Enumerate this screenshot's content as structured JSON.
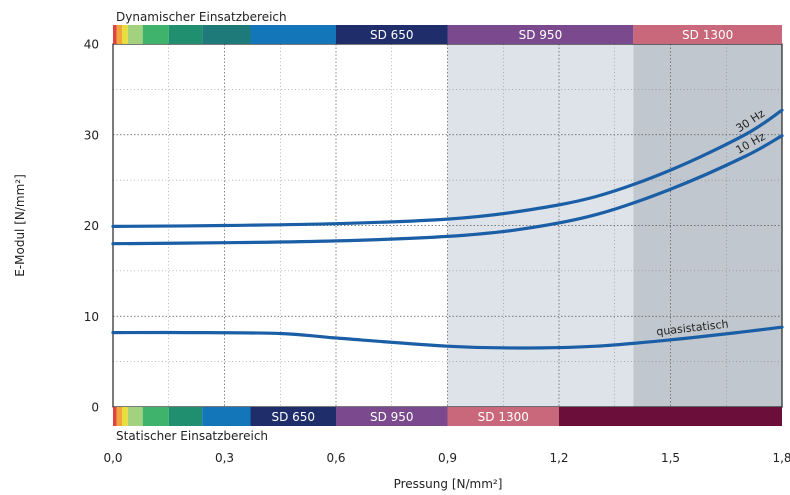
{
  "chart_data": {
    "type": "line",
    "xlabel": "Pressung [N/mm²]",
    "ylabel": "E-Modul [N/mm²]",
    "xlim": [
      0,
      1.8
    ],
    "ylim": [
      0,
      40
    ],
    "x_ticks": [
      "0,0",
      "0,3",
      "0,6",
      "0,9",
      "1,2",
      "1,5",
      "1,8"
    ],
    "y_ticks": [
      "0",
      "10",
      "20",
      "30",
      "40"
    ],
    "grid": true,
    "series": [
      {
        "name": "30 Hz",
        "color": "#1a5ea6",
        "points": [
          [
            0,
            19.9
          ],
          [
            0.3,
            20.0
          ],
          [
            0.6,
            20.2
          ],
          [
            0.9,
            20.7
          ],
          [
            1.1,
            21.6
          ],
          [
            1.3,
            23.2
          ],
          [
            1.5,
            26.1
          ],
          [
            1.7,
            30.0
          ],
          [
            1.8,
            32.7
          ]
        ]
      },
      {
        "name": "10 Hz",
        "color": "#1a5ea6",
        "points": [
          [
            0,
            18.0
          ],
          [
            0.3,
            18.1
          ],
          [
            0.6,
            18.3
          ],
          [
            0.9,
            18.8
          ],
          [
            1.1,
            19.6
          ],
          [
            1.3,
            21.2
          ],
          [
            1.5,
            24.0
          ],
          [
            1.7,
            27.6
          ],
          [
            1.8,
            29.9
          ]
        ]
      },
      {
        "name": "quasistatisch",
        "color": "#1a5ea6",
        "points": [
          [
            0,
            8.2
          ],
          [
            0.2,
            8.2
          ],
          [
            0.45,
            8.1
          ],
          [
            0.6,
            7.6
          ],
          [
            0.9,
            6.7
          ],
          [
            1.1,
            6.5
          ],
          [
            1.3,
            6.7
          ],
          [
            1.5,
            7.4
          ],
          [
            1.7,
            8.3
          ],
          [
            1.8,
            8.8
          ]
        ]
      }
    ],
    "shaded_regions": [
      {
        "x": [
          0.9,
          1.4
        ],
        "color": "#dde3e8"
      },
      {
        "x": [
          1.4,
          1.8
        ],
        "color": "#c0c7ce"
      }
    ],
    "top_band": {
      "title": "Dynamischer Einsatzbereich",
      "segments": [
        {
          "label": "",
          "x": [
            0.0,
            0.01
          ],
          "color": "#e0433f"
        },
        {
          "label": "",
          "x": [
            0.01,
            0.025
          ],
          "color": "#f2a33a"
        },
        {
          "label": "",
          "x": [
            0.025,
            0.04
          ],
          "color": "#e9df3c"
        },
        {
          "label": "",
          "x": [
            0.04,
            0.08
          ],
          "color": "#a3d17e"
        },
        {
          "label": "",
          "x": [
            0.08,
            0.15
          ],
          "color": "#3fb36b"
        },
        {
          "label": "",
          "x": [
            0.15,
            0.24
          ],
          "color": "#1f8f6f"
        },
        {
          "label": "",
          "x": [
            0.24,
            0.37
          ],
          "color": "#1e7a78"
        },
        {
          "label": "",
          "x": [
            0.37,
            0.6
          ],
          "color": "#1376b8"
        },
        {
          "label": "SD 650",
          "x": [
            0.6,
            0.9
          ],
          "color": "#1f2d6b"
        },
        {
          "label": "SD 950",
          "x": [
            0.9,
            1.4
          ],
          "color": "#7b4a8e"
        },
        {
          "label": "SD 1300",
          "x": [
            1.4,
            1.8
          ],
          "color": "#c8687a"
        }
      ]
    },
    "bottom_band": {
      "title": "Statischer Einsatzbereich",
      "segments": [
        {
          "label": "",
          "x": [
            0.0,
            0.01
          ],
          "color": "#e0433f"
        },
        {
          "label": "",
          "x": [
            0.01,
            0.025
          ],
          "color": "#f2a33a"
        },
        {
          "label": "",
          "x": [
            0.025,
            0.04
          ],
          "color": "#e9df3c"
        },
        {
          "label": "",
          "x": [
            0.04,
            0.08
          ],
          "color": "#a3d17e"
        },
        {
          "label": "",
          "x": [
            0.08,
            0.15
          ],
          "color": "#3fb36b"
        },
        {
          "label": "",
          "x": [
            0.15,
            0.24
          ],
          "color": "#1f8f6f"
        },
        {
          "label": "",
          "x": [
            0.24,
            0.37
          ],
          "color": "#1376b8"
        },
        {
          "label": "SD 650",
          "x": [
            0.37,
            0.6
          ],
          "color": "#1f2d6b"
        },
        {
          "label": "SD 950",
          "x": [
            0.6,
            0.9
          ],
          "color": "#7b4a8e"
        },
        {
          "label": "SD 1300",
          "x": [
            0.9,
            1.2
          ],
          "color": "#c8687a"
        },
        {
          "label": "",
          "x": [
            1.2,
            1.8
          ],
          "color": "#6b0f3a"
        }
      ]
    }
  }
}
